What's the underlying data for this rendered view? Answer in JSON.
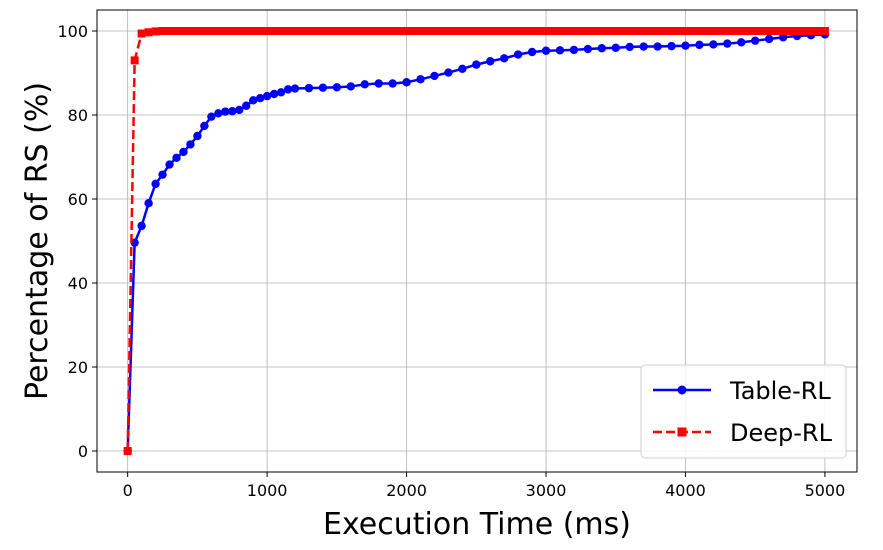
{
  "chart_data": {
    "type": "line",
    "title": "",
    "xlabel": "Execution Time (ms)",
    "ylabel": "Percentage of RS (%)",
    "xlim": [
      -220,
      5230
    ],
    "ylim": [
      -5,
      105
    ],
    "xticks": [
      0,
      1000,
      2000,
      3000,
      4000,
      5000
    ],
    "yticks": [
      0,
      20,
      40,
      60,
      80,
      100
    ],
    "grid": true,
    "legend_position": "lower-right",
    "series": [
      {
        "name": "Table-RL",
        "color": "#0000ff",
        "marker": "circle",
        "line_style": "solid",
        "x": [
          0,
          50,
          100,
          150,
          200,
          250,
          300,
          350,
          400,
          450,
          500,
          550,
          600,
          650,
          700,
          750,
          800,
          850,
          900,
          950,
          1000,
          1050,
          1100,
          1150,
          1200,
          1300,
          1400,
          1500,
          1600,
          1700,
          1800,
          1900,
          2000,
          2100,
          2200,
          2300,
          2400,
          2500,
          2600,
          2700,
          2800,
          2900,
          3000,
          3100,
          3200,
          3300,
          3400,
          3500,
          3600,
          3700,
          3800,
          3900,
          4000,
          4100,
          4200,
          4300,
          4400,
          4500,
          4600,
          4700,
          4800,
          4900,
          5000
        ],
        "y": [
          0,
          49.6,
          53.6,
          59.0,
          63.6,
          65.8,
          68.2,
          69.8,
          71.2,
          73.0,
          75.0,
          77.4,
          79.6,
          80.4,
          80.8,
          80.9,
          81.2,
          82.2,
          83.5,
          84.0,
          84.5,
          85.0,
          85.4,
          86.1,
          86.3,
          86.4,
          86.5,
          86.6,
          86.8,
          87.3,
          87.5,
          87.5,
          87.8,
          88.5,
          89.3,
          90.1,
          91.0,
          92.0,
          92.8,
          93.5,
          94.4,
          95.0,
          95.3,
          95.4,
          95.5,
          95.7,
          95.9,
          96.0,
          96.2,
          96.3,
          96.3,
          96.4,
          96.5,
          96.7,
          96.8,
          97.0,
          97.3,
          97.7,
          98.1,
          98.5,
          98.8,
          99.0,
          99.2
        ]
      },
      {
        "name": "Deep-RL",
        "color": "#ff0000",
        "marker": "square",
        "line_style": "dashed",
        "x": [
          0,
          50,
          100,
          150,
          200,
          250,
          300,
          350,
          400,
          450,
          500,
          550,
          600,
          650,
          700,
          750,
          800,
          850,
          900,
          950,
          1000,
          1050,
          1100,
          1150,
          1200,
          1250,
          1300,
          1350,
          1400,
          1450,
          1500,
          1550,
          1600,
          1650,
          1700,
          1750,
          1800,
          1850,
          1900,
          1950,
          2000,
          2050,
          2100,
          2150,
          2200,
          2250,
          2300,
          2350,
          2400,
          2450,
          2500,
          2550,
          2600,
          2650,
          2700,
          2750,
          2800,
          2850,
          2900,
          2950,
          3000,
          3050,
          3100,
          3150,
          3200,
          3250,
          3300,
          3350,
          3400,
          3450,
          3500,
          3550,
          3600,
          3650,
          3700,
          3750,
          3800,
          3850,
          3900,
          3950,
          4000,
          4050,
          4100,
          4150,
          4200,
          4250,
          4300,
          4350,
          4400,
          4450,
          4500,
          4550,
          4600,
          4650,
          4700,
          4750,
          4800,
          4850,
          4900,
          4950,
          5000
        ],
        "y": [
          0,
          93.0,
          99.4,
          99.7,
          99.9,
          100,
          100,
          100,
          100,
          100,
          100,
          100,
          100,
          100,
          100,
          100,
          100,
          100,
          100,
          100,
          100,
          100,
          100,
          100,
          100,
          100,
          100,
          100,
          100,
          100,
          100,
          100,
          100,
          100,
          100,
          100,
          100,
          100,
          100,
          100,
          100,
          100,
          100,
          100,
          100,
          100,
          100,
          100,
          100,
          100,
          100,
          100,
          100,
          100,
          100,
          100,
          100,
          100,
          100,
          100,
          100,
          100,
          100,
          100,
          100,
          100,
          100,
          100,
          100,
          100,
          100,
          100,
          100,
          100,
          100,
          100,
          100,
          100,
          100,
          100,
          100,
          100,
          100,
          100,
          100,
          100,
          100,
          100,
          100,
          100,
          100,
          100,
          100,
          100,
          100,
          100,
          100,
          100,
          100,
          100,
          100
        ]
      }
    ]
  }
}
